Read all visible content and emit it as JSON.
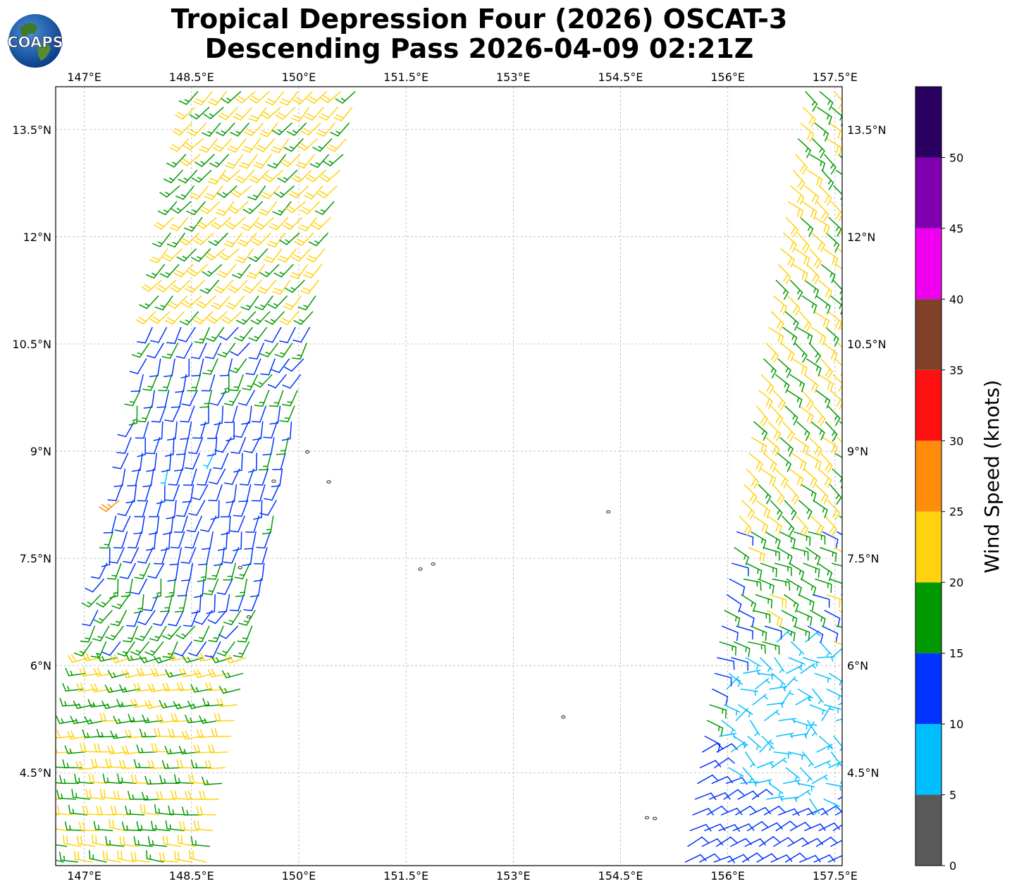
{
  "title_line1": "Tropical Depression Four (2026) OSCAT-3",
  "title_line2": "Descending Pass 2026-04-09 02:21Z",
  "logo_text": "COAPS",
  "map": {
    "lon_range": [
      146.6,
      157.6
    ],
    "lat_range": [
      3.2,
      14.1
    ],
    "lon_ticks": [
      {
        "value": 147.0,
        "label": "147°E"
      },
      {
        "value": 148.5,
        "label": "148.5°E"
      },
      {
        "value": 150.0,
        "label": "150°E"
      },
      {
        "value": 151.5,
        "label": "151.5°E"
      },
      {
        "value": 153.0,
        "label": "153°E"
      },
      {
        "value": 154.5,
        "label": "154.5°E"
      },
      {
        "value": 156.0,
        "label": "156°E"
      },
      {
        "value": 157.5,
        "label": "157.5°E"
      }
    ],
    "lat_ticks": [
      {
        "value": 13.5,
        "label": "13.5°N"
      },
      {
        "value": 12.0,
        "label": "12°N"
      },
      {
        "value": 10.5,
        "label": "10.5°N"
      },
      {
        "value": 9.0,
        "label": "9°N"
      },
      {
        "value": 7.5,
        "label": "7.5°N"
      },
      {
        "value": 6.0,
        "label": "6°N"
      },
      {
        "value": 4.5,
        "label": "4.5°N"
      }
    ],
    "grid": true
  },
  "colorbar": {
    "label": "Wind Speed (knots)",
    "bins": [
      {
        "min": 0,
        "max": 5,
        "color": "#595959"
      },
      {
        "min": 5,
        "max": 10,
        "color": "#00bfff"
      },
      {
        "min": 10,
        "max": 15,
        "color": "#0033ff"
      },
      {
        "min": 15,
        "max": 20,
        "color": "#009900"
      },
      {
        "min": 20,
        "max": 25,
        "color": "#ffd20f"
      },
      {
        "min": 25,
        "max": 30,
        "color": "#ff8c0a"
      },
      {
        "min": 30,
        "max": 35,
        "color": "#ff1010"
      },
      {
        "min": 35,
        "max": 40,
        "color": "#80402a"
      },
      {
        "min": 40,
        "max": 45,
        "color": "#f000f0"
      },
      {
        "min": 45,
        "max": 50,
        "color": "#8000b0"
      },
      {
        "min": 50,
        "max": 55,
        "color": "#2a0060"
      }
    ],
    "tick_labels": [
      "0",
      "5",
      "10",
      "15",
      "20",
      "25",
      "30",
      "35",
      "40",
      "45",
      "50"
    ]
  },
  "islands": [
    {
      "lon": 150.12,
      "lat": 8.99
    },
    {
      "lon": 149.65,
      "lat": 8.58
    },
    {
      "lon": 150.42,
      "lat": 8.57
    },
    {
      "lon": 154.33,
      "lat": 8.15
    },
    {
      "lon": 149.18,
      "lat": 7.37
    },
    {
      "lon": 151.7,
      "lat": 7.35
    },
    {
      "lon": 151.88,
      "lat": 7.42
    },
    {
      "lon": 149.3,
      "lat": 6.68
    },
    {
      "lon": 153.7,
      "lat": 5.28
    },
    {
      "lon": 154.87,
      "lat": 3.87
    },
    {
      "lon": 154.98,
      "lat": 3.86
    }
  ],
  "wind_swaths": [
    {
      "name": "west",
      "lon_center_at_lat_min": 147.6,
      "lon_center_at_lat_max": 149.7,
      "width_deg": 2.2
    },
    {
      "name": "east",
      "lon_center_at_lat_min": 156.5,
      "lon_center_at_lat_max": 158.2,
      "width_deg": 2.2
    }
  ]
}
